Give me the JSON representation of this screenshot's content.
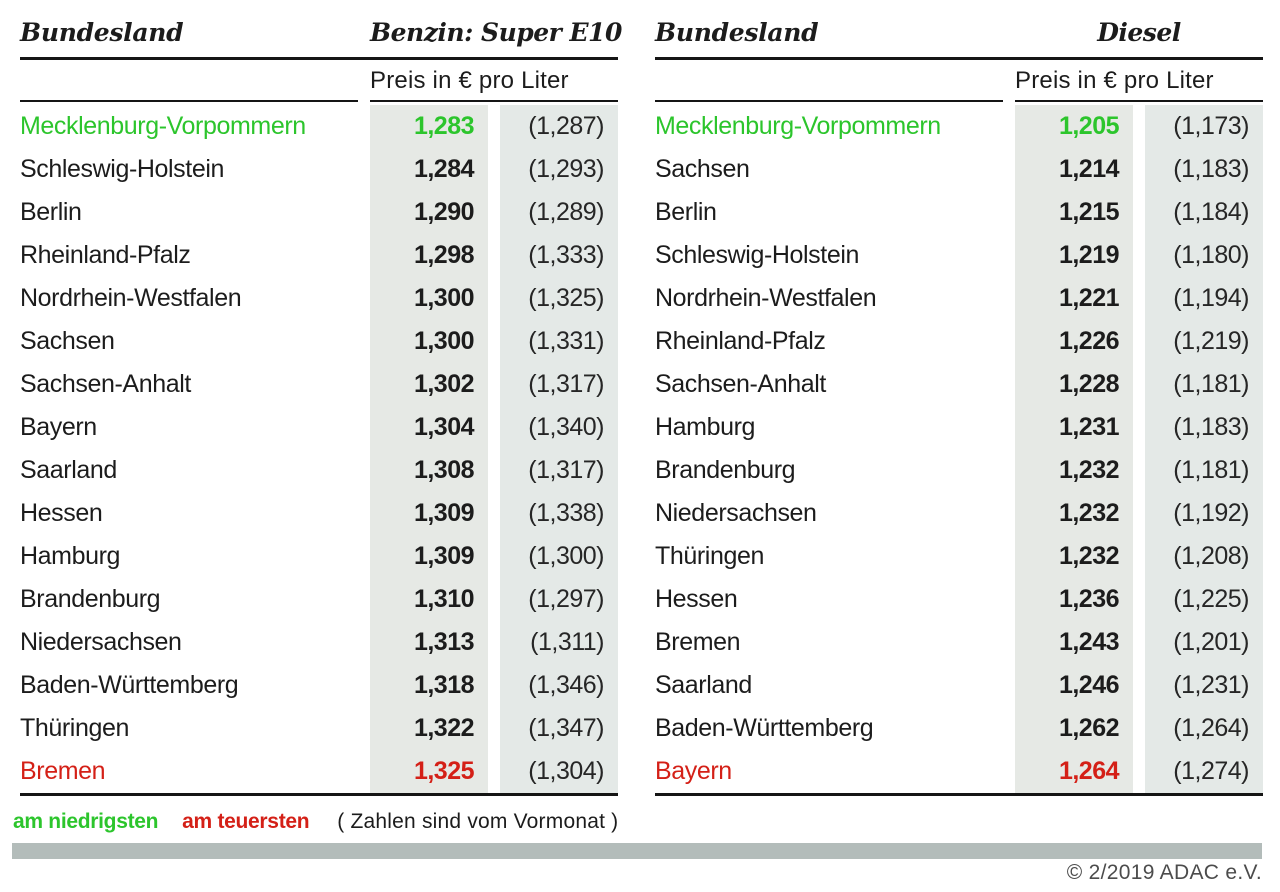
{
  "legend": {
    "lowest_label": "am niedrigsten",
    "highest_label": "am teuersten",
    "note": "( Zahlen sind vom Vormonat )"
  },
  "source": "© 2/2019 ADAC e.V.",
  "colors": {
    "lowest": "#2cc52c",
    "highest": "#d42017",
    "column_shade_1": "#e6e9e5",
    "column_shade_2": "#e4e9e7",
    "divider_bar": "#b3bcba",
    "rule": "#151515",
    "text": "#1c1c1c"
  },
  "tables": [
    {
      "id": "benzin",
      "region_header": "Bundesland",
      "fuel_header": "Benzin:  Super E10",
      "unit_header": "Preis in € pro Liter",
      "rows": [
        {
          "name": "Mecklenburg-Vorpommern",
          "price": "1,283",
          "previous": "(1,287)",
          "status": "lowest"
        },
        {
          "name": "Schleswig-Holstein",
          "price": "1,284",
          "previous": "(1,293)",
          "status": ""
        },
        {
          "name": "Berlin",
          "price": "1,290",
          "previous": "(1,289)",
          "status": ""
        },
        {
          "name": "Rheinland-Pfalz",
          "price": "1,298",
          "previous": "(1,333)",
          "status": ""
        },
        {
          "name": "Nordrhein-Westfalen",
          "price": "1,300",
          "previous": "(1,325)",
          "status": ""
        },
        {
          "name": "Sachsen",
          "price": "1,300",
          "previous": "(1,331)",
          "status": ""
        },
        {
          "name": "Sachsen-Anhalt",
          "price": "1,302",
          "previous": "(1,317)",
          "status": ""
        },
        {
          "name": "Bayern",
          "price": "1,304",
          "previous": "(1,340)",
          "status": ""
        },
        {
          "name": "Saarland",
          "price": "1,308",
          "previous": "(1,317)",
          "status": ""
        },
        {
          "name": "Hessen",
          "price": "1,309",
          "previous": "(1,338)",
          "status": ""
        },
        {
          "name": "Hamburg",
          "price": "1,309",
          "previous": "(1,300)",
          "status": ""
        },
        {
          "name": "Brandenburg",
          "price": "1,310",
          "previous": "(1,297)",
          "status": ""
        },
        {
          "name": "Niedersachsen",
          "price": "1,313",
          "previous": "(1,311)",
          "status": ""
        },
        {
          "name": "Baden-Württemberg",
          "price": "1,318",
          "previous": "(1,346)",
          "status": ""
        },
        {
          "name": "Thüringen",
          "price": "1,322",
          "previous": "(1,347)",
          "status": ""
        },
        {
          "name": "Bremen",
          "price": "1,325",
          "previous": "(1,304)",
          "status": "highest"
        }
      ]
    },
    {
      "id": "diesel",
      "region_header": "Bundesland",
      "fuel_header": "Diesel",
      "unit_header": "Preis in € pro Liter",
      "rows": [
        {
          "name": "Mecklenburg-Vorpommern",
          "price": "1,205",
          "previous": "(1,173)",
          "status": "lowest"
        },
        {
          "name": "Sachsen",
          "price": "1,214",
          "previous": "(1,183)",
          "status": ""
        },
        {
          "name": "Berlin",
          "price": "1,215",
          "previous": "(1,184)",
          "status": ""
        },
        {
          "name": "Schleswig-Holstein",
          "price": "1,219",
          "previous": "(1,180)",
          "status": ""
        },
        {
          "name": "Nordrhein-Westfalen",
          "price": "1,221",
          "previous": "(1,194)",
          "status": ""
        },
        {
          "name": "Rheinland-Pfalz",
          "price": "1,226",
          "previous": "(1,219)",
          "status": ""
        },
        {
          "name": "Sachsen-Anhalt",
          "price": "1,228",
          "previous": "(1,181)",
          "status": ""
        },
        {
          "name": "Hamburg",
          "price": "1,231",
          "previous": "(1,183)",
          "status": ""
        },
        {
          "name": "Brandenburg",
          "price": "1,232",
          "previous": "(1,181)",
          "status": ""
        },
        {
          "name": "Niedersachsen",
          "price": "1,232",
          "previous": "(1,192)",
          "status": ""
        },
        {
          "name": "Thüringen",
          "price": "1,232",
          "previous": "(1,208)",
          "status": ""
        },
        {
          "name": "Hessen",
          "price": "1,236",
          "previous": "(1,225)",
          "status": ""
        },
        {
          "name": "Bremen",
          "price": "1,243",
          "previous": "(1,201)",
          "status": ""
        },
        {
          "name": "Saarland",
          "price": "1,246",
          "previous": "(1,231)",
          "status": ""
        },
        {
          "name": "Baden-Württemberg",
          "price": "1,262",
          "previous": "(1,264)",
          "status": ""
        },
        {
          "name": "Bayern",
          "price": "1,264",
          "previous": "(1,274)",
          "status": "highest"
        }
      ]
    }
  ],
  "chart_data": [
    {
      "type": "table",
      "title": "Benzin: Super E10",
      "subtitle": "Preis in € pro Liter",
      "columns": [
        "Bundesland",
        "Preis",
        "Vormonat"
      ],
      "rows": [
        [
          "Mecklenburg-Vorpommern",
          1.283,
          1.287
        ],
        [
          "Schleswig-Holstein",
          1.284,
          1.293
        ],
        [
          "Berlin",
          1.29,
          1.289
        ],
        [
          "Rheinland-Pfalz",
          1.298,
          1.333
        ],
        [
          "Nordrhein-Westfalen",
          1.3,
          1.325
        ],
        [
          "Sachsen",
          1.3,
          1.331
        ],
        [
          "Sachsen-Anhalt",
          1.302,
          1.317
        ],
        [
          "Bayern",
          1.304,
          1.34
        ],
        [
          "Saarland",
          1.308,
          1.317
        ],
        [
          "Hessen",
          1.309,
          1.338
        ],
        [
          "Hamburg",
          1.309,
          1.3
        ],
        [
          "Brandenburg",
          1.31,
          1.297
        ],
        [
          "Niedersachsen",
          1.313,
          1.311
        ],
        [
          "Baden-Württemberg",
          1.318,
          1.346
        ],
        [
          "Thüringen",
          1.322,
          1.347
        ],
        [
          "Bremen",
          1.325,
          1.304
        ]
      ],
      "annotations": {
        "lowest": "Mecklenburg-Vorpommern",
        "highest": "Bremen"
      }
    },
    {
      "type": "table",
      "title": "Diesel",
      "subtitle": "Preis in € pro Liter",
      "columns": [
        "Bundesland",
        "Preis",
        "Vormonat"
      ],
      "rows": [
        [
          "Mecklenburg-Vorpommern",
          1.205,
          1.173
        ],
        [
          "Sachsen",
          1.214,
          1.183
        ],
        [
          "Berlin",
          1.215,
          1.184
        ],
        [
          "Schleswig-Holstein",
          1.219,
          1.18
        ],
        [
          "Nordrhein-Westfalen",
          1.221,
          1.194
        ],
        [
          "Rheinland-Pfalz",
          1.226,
          1.219
        ],
        [
          "Sachsen-Anhalt",
          1.228,
          1.181
        ],
        [
          "Hamburg",
          1.231,
          1.183
        ],
        [
          "Brandenburg",
          1.232,
          1.181
        ],
        [
          "Niedersachsen",
          1.232,
          1.192
        ],
        [
          "Thüringen",
          1.232,
          1.208
        ],
        [
          "Hessen",
          1.236,
          1.225
        ],
        [
          "Bremen",
          1.243,
          1.201
        ],
        [
          "Saarland",
          1.246,
          1.231
        ],
        [
          "Baden-Württemberg",
          1.262,
          1.264
        ],
        [
          "Bayern",
          1.264,
          1.274
        ]
      ],
      "annotations": {
        "lowest": "Mecklenburg-Vorpommern",
        "highest": "Bayern"
      }
    }
  ]
}
